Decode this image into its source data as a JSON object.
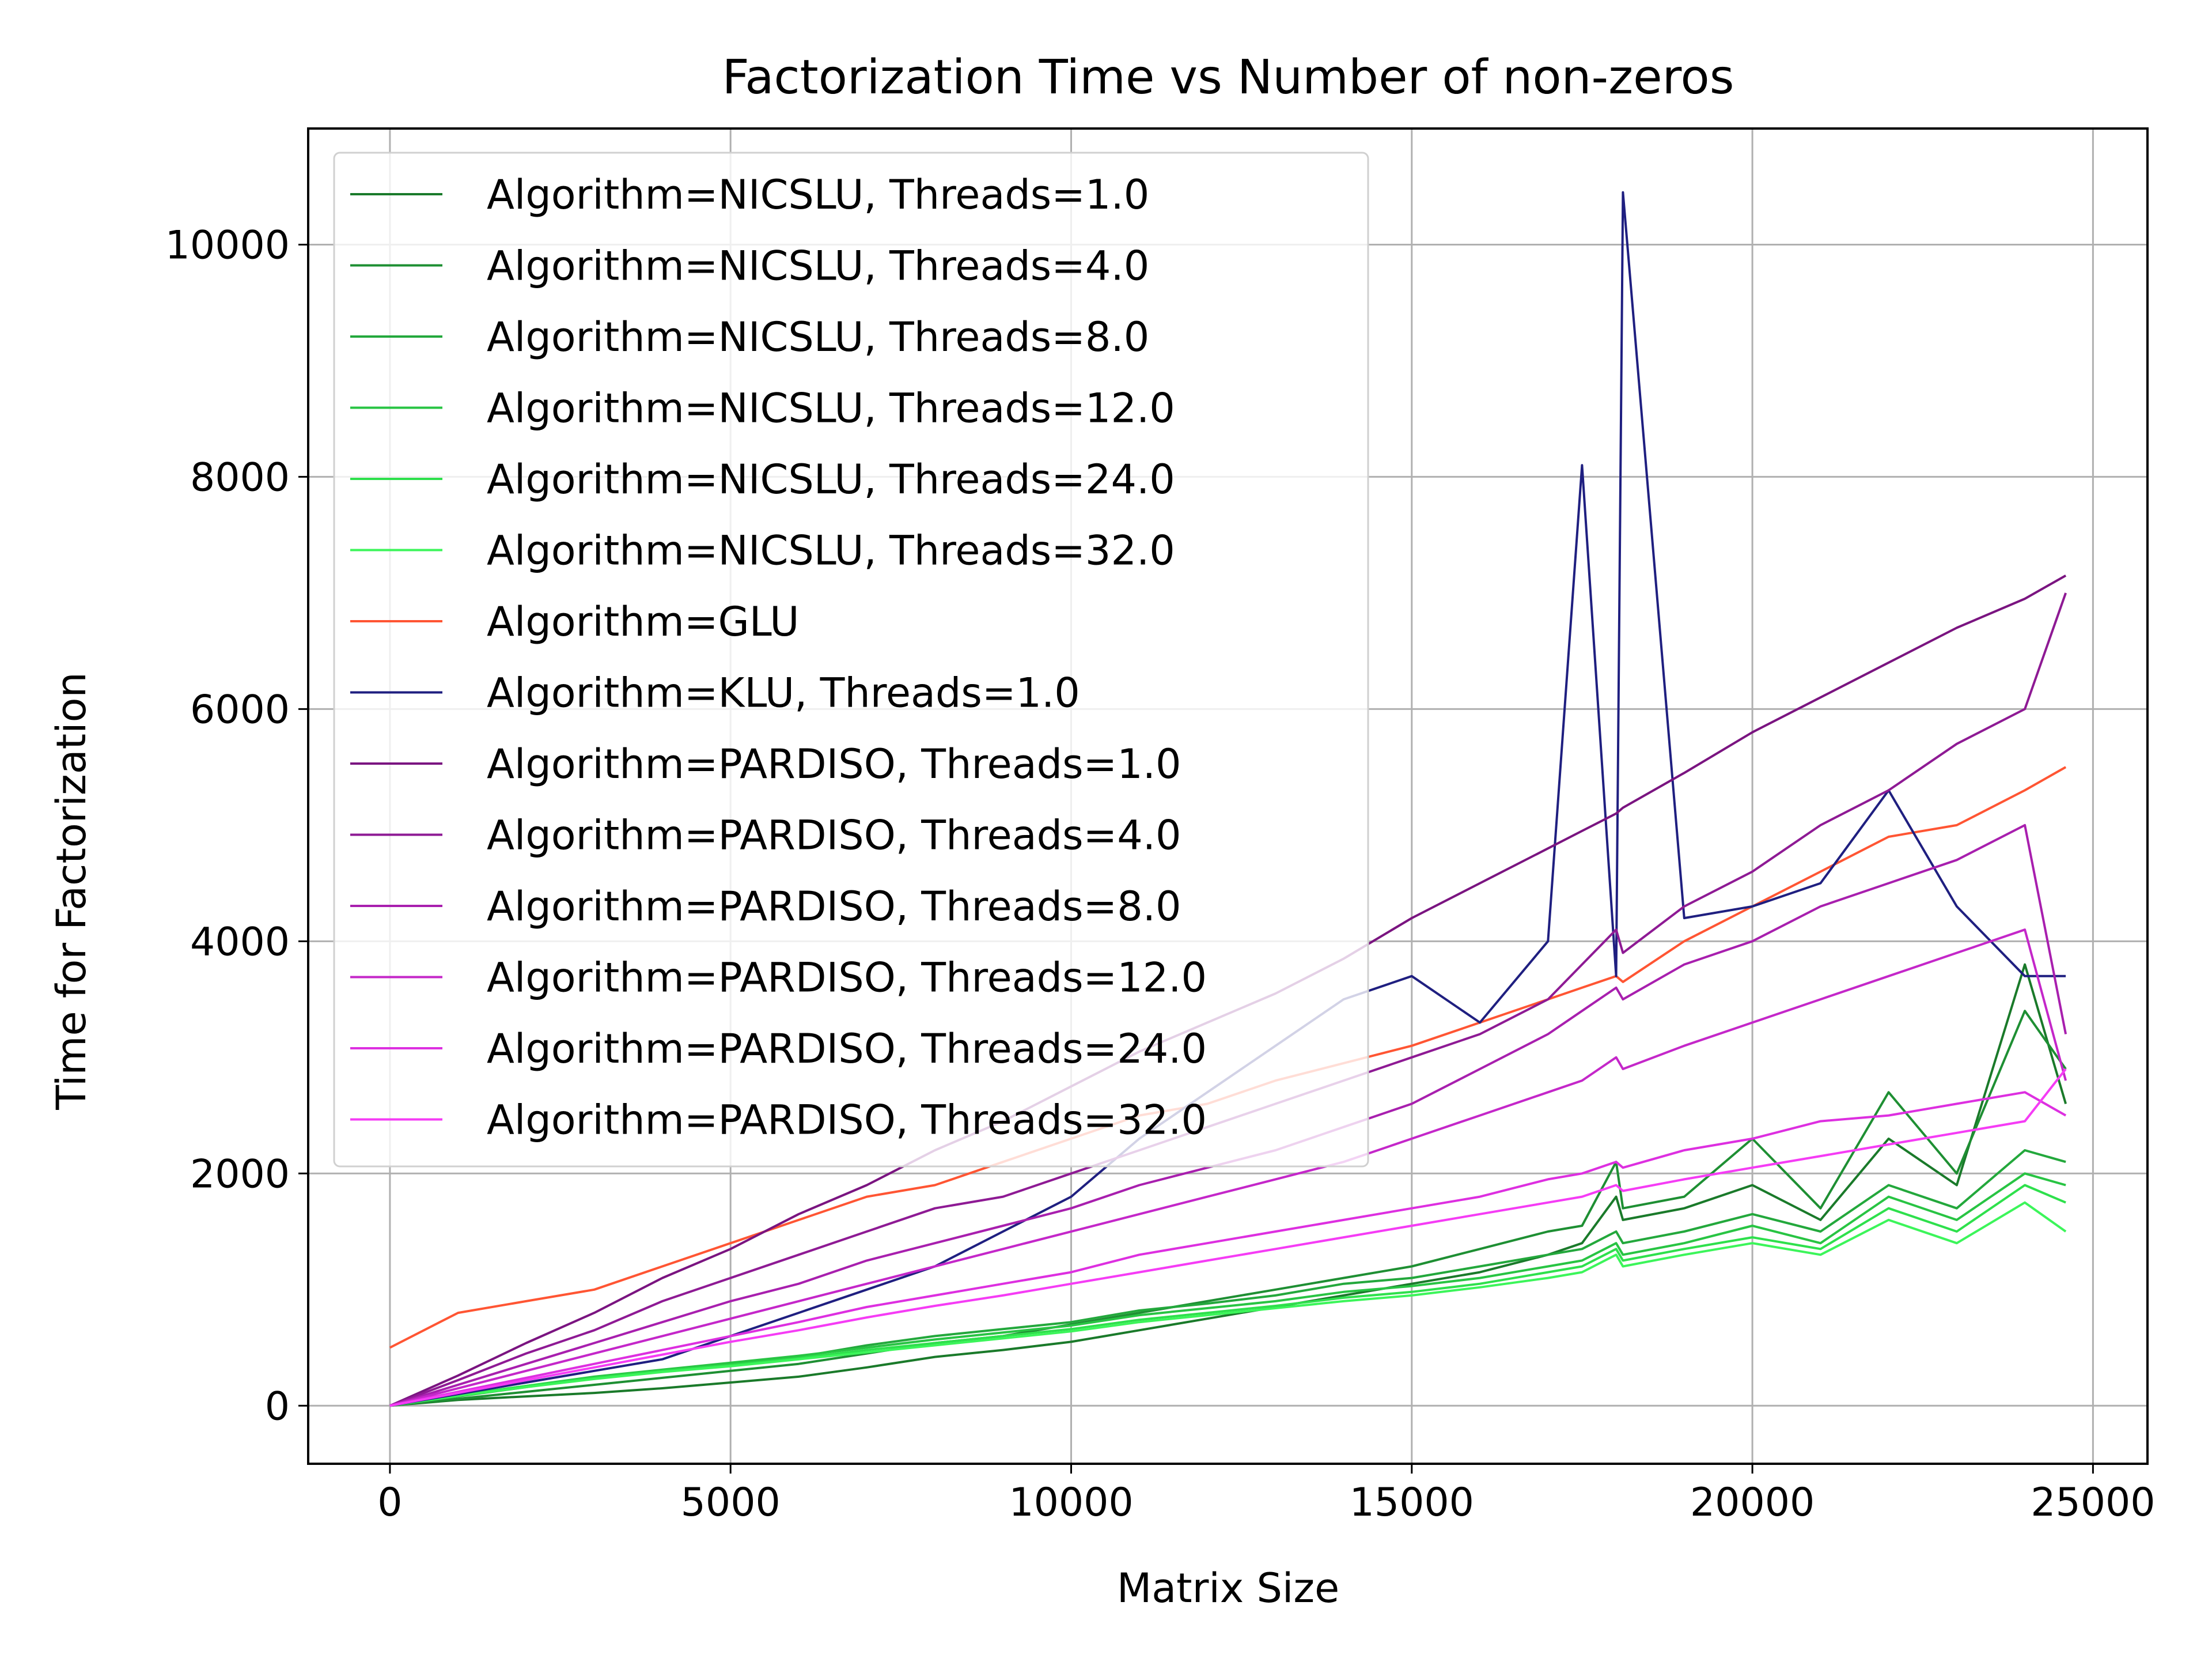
{
  "chart_data": {
    "type": "line",
    "title": "Factorization Time vs Number of non-zeros",
    "xlabel": "Matrix Size",
    "ylabel": "Time for Factorization",
    "xlim": [
      -1200,
      25800
    ],
    "ylim": [
      -500,
      11000
    ],
    "xticks": [
      0,
      5000,
      10000,
      15000,
      20000,
      25000
    ],
    "xtick_labels": [
      "0",
      "5000",
      "10000",
      "15000",
      "20000",
      "25000"
    ],
    "yticks": [
      0,
      2000,
      4000,
      6000,
      8000,
      10000
    ],
    "ytick_labels": [
      "0",
      "2000",
      "4000",
      "6000",
      "8000",
      "10000"
    ],
    "grid": true,
    "legend_position": "upper-left",
    "x": [
      0,
      1000,
      2000,
      3000,
      4000,
      5000,
      6000,
      7000,
      8000,
      9000,
      10000,
      11000,
      12000,
      13000,
      14000,
      15000,
      16000,
      17000,
      17500,
      18000,
      18100,
      19000,
      20000,
      21000,
      22000,
      23000,
      24000,
      24600
    ],
    "series": [
      {
        "name": "Algorithm=NICSLU, Threads=1.0",
        "color": "#1a7a2a",
        "values": [
          0,
          50,
          80,
          110,
          150,
          200,
          250,
          330,
          420,
          480,
          550,
          650,
          750,
          850,
          950,
          1050,
          1150,
          1300,
          1400,
          1800,
          1600,
          1700,
          1900,
          1600,
          2300,
          1900,
          3800,
          2600
        ]
      },
      {
        "name": "Algorithm=NICSLU, Threads=4.0",
        "color": "#1e8f33",
        "values": [
          0,
          60,
          120,
          180,
          240,
          300,
          360,
          450,
          540,
          600,
          700,
          800,
          900,
          1000,
          1100,
          1200,
          1350,
          1500,
          1550,
          2100,
          1700,
          1800,
          2300,
          1700,
          2700,
          2000,
          3400,
          2900
        ]
      },
      {
        "name": "Algorithm=NICSLU, Threads=8.0",
        "color": "#23a83c",
        "values": [
          0,
          80,
          160,
          240,
          300,
          360,
          420,
          520,
          600,
          660,
          720,
          820,
          880,
          950,
          1050,
          1100,
          1200,
          1300,
          1350,
          1500,
          1400,
          1500,
          1650,
          1500,
          1900,
          1700,
          2200,
          2100
        ]
      },
      {
        "name": "Algorithm=NICSLU, Threads=12.0",
        "color": "#28c443",
        "values": [
          0,
          90,
          170,
          250,
          310,
          370,
          430,
          500,
          570,
          630,
          690,
          780,
          840,
          900,
          980,
          1030,
          1100,
          1200,
          1250,
          1400,
          1300,
          1400,
          1550,
          1400,
          1800,
          1600,
          2000,
          1900
        ]
      },
      {
        "name": "Algorithm=NICSLU, Threads=24.0",
        "color": "#2ee04c",
        "values": [
          0,
          90,
          170,
          240,
          300,
          350,
          410,
          480,
          540,
          600,
          660,
          740,
          800,
          860,
          930,
          980,
          1050,
          1150,
          1200,
          1350,
          1250,
          1350,
          1450,
          1350,
          1700,
          1500,
          1900,
          1750
        ]
      },
      {
        "name": "Algorithm=NICSLU, Threads=32.0",
        "color": "#3cf55a",
        "values": [
          0,
          85,
          160,
          230,
          290,
          340,
          400,
          460,
          520,
          580,
          640,
          720,
          780,
          840,
          900,
          950,
          1020,
          1100,
          1150,
          1300,
          1200,
          1300,
          1400,
          1300,
          1600,
          1400,
          1750,
          1500
        ]
      },
      {
        "name": "Algorithm=GLU",
        "color": "#ff5533",
        "values": [
          500,
          800,
          900,
          1000,
          1200,
          1400,
          1600,
          1800,
          1900,
          2100,
          2300,
          2500,
          2600,
          2800,
          2950,
          3100,
          3300,
          3500,
          3600,
          3700,
          3650,
          4000,
          4300,
          4600,
          4900,
          5000,
          5300,
          5500
        ]
      },
      {
        "name": "Algorithm=KLU, Threads=1.0",
        "color": "#1f1f80",
        "values": [
          0,
          100,
          200,
          300,
          400,
          600,
          800,
          1000,
          1200,
          1500,
          1800,
          2300,
          2700,
          3100,
          3500,
          3700,
          3300,
          4000,
          8100,
          3700,
          10450,
          4200,
          4300,
          4500,
          5300,
          4300,
          3700,
          3700
        ]
      },
      {
        "name": "Algorithm=PARDISO, Threads=1.0",
        "color": "#7a1480",
        "values": [
          0,
          260,
          540,
          800,
          1100,
          1350,
          1650,
          1900,
          2200,
          2450,
          2750,
          3050,
          3300,
          3550,
          3850,
          4200,
          4500,
          4800,
          4950,
          5100,
          5150,
          5450,
          5800,
          6100,
          6400,
          6700,
          6950,
          7150
        ]
      },
      {
        "name": "Algorithm=PARDISO, Threads=4.0",
        "color": "#8e1a94",
        "values": [
          0,
          220,
          450,
          650,
          900,
          1100,
          1300,
          1500,
          1700,
          1800,
          2000,
          2200,
          2400,
          2600,
          2800,
          3000,
          3200,
          3500,
          3800,
          4100,
          3900,
          4300,
          4600,
          5000,
          5300,
          5700,
          6000,
          7000
        ]
      },
      {
        "name": "Algorithm=PARDISO, Threads=8.0",
        "color": "#a81fae",
        "values": [
          0,
          180,
          360,
          540,
          720,
          900,
          1050,
          1250,
          1400,
          1550,
          1700,
          1900,
          2050,
          2200,
          2400,
          2600,
          2900,
          3200,
          3400,
          3600,
          3500,
          3800,
          4000,
          4300,
          4500,
          4700,
          5000,
          3200
        ]
      },
      {
        "name": "Algorithm=PARDISO, Threads=12.0",
        "color": "#c427c9",
        "values": [
          0,
          150,
          300,
          450,
          600,
          750,
          900,
          1050,
          1200,
          1350,
          1500,
          1650,
          1800,
          1950,
          2100,
          2300,
          2500,
          2700,
          2800,
          3000,
          2900,
          3100,
          3300,
          3500,
          3700,
          3900,
          4100,
          2800
        ]
      },
      {
        "name": "Algorithm=PARDISO, Threads=24.0",
        "color": "#dd2fe0",
        "values": [
          0,
          120,
          240,
          360,
          480,
          600,
          720,
          850,
          950,
          1050,
          1150,
          1300,
          1400,
          1500,
          1600,
          1700,
          1800,
          1950,
          2000,
          2100,
          2050,
          2200,
          2300,
          2450,
          2500,
          2600,
          2700,
          2500
        ]
      },
      {
        "name": "Algorithm=PARDISO, Threads=32.0",
        "color": "#f53cf5",
        "values": [
          0,
          110,
          220,
          330,
          440,
          550,
          650,
          760,
          860,
          950,
          1050,
          1150,
          1250,
          1350,
          1450,
          1550,
          1650,
          1750,
          1800,
          1900,
          1850,
          1950,
          2050,
          2150,
          2250,
          2350,
          2450,
          2900
        ]
      }
    ]
  }
}
